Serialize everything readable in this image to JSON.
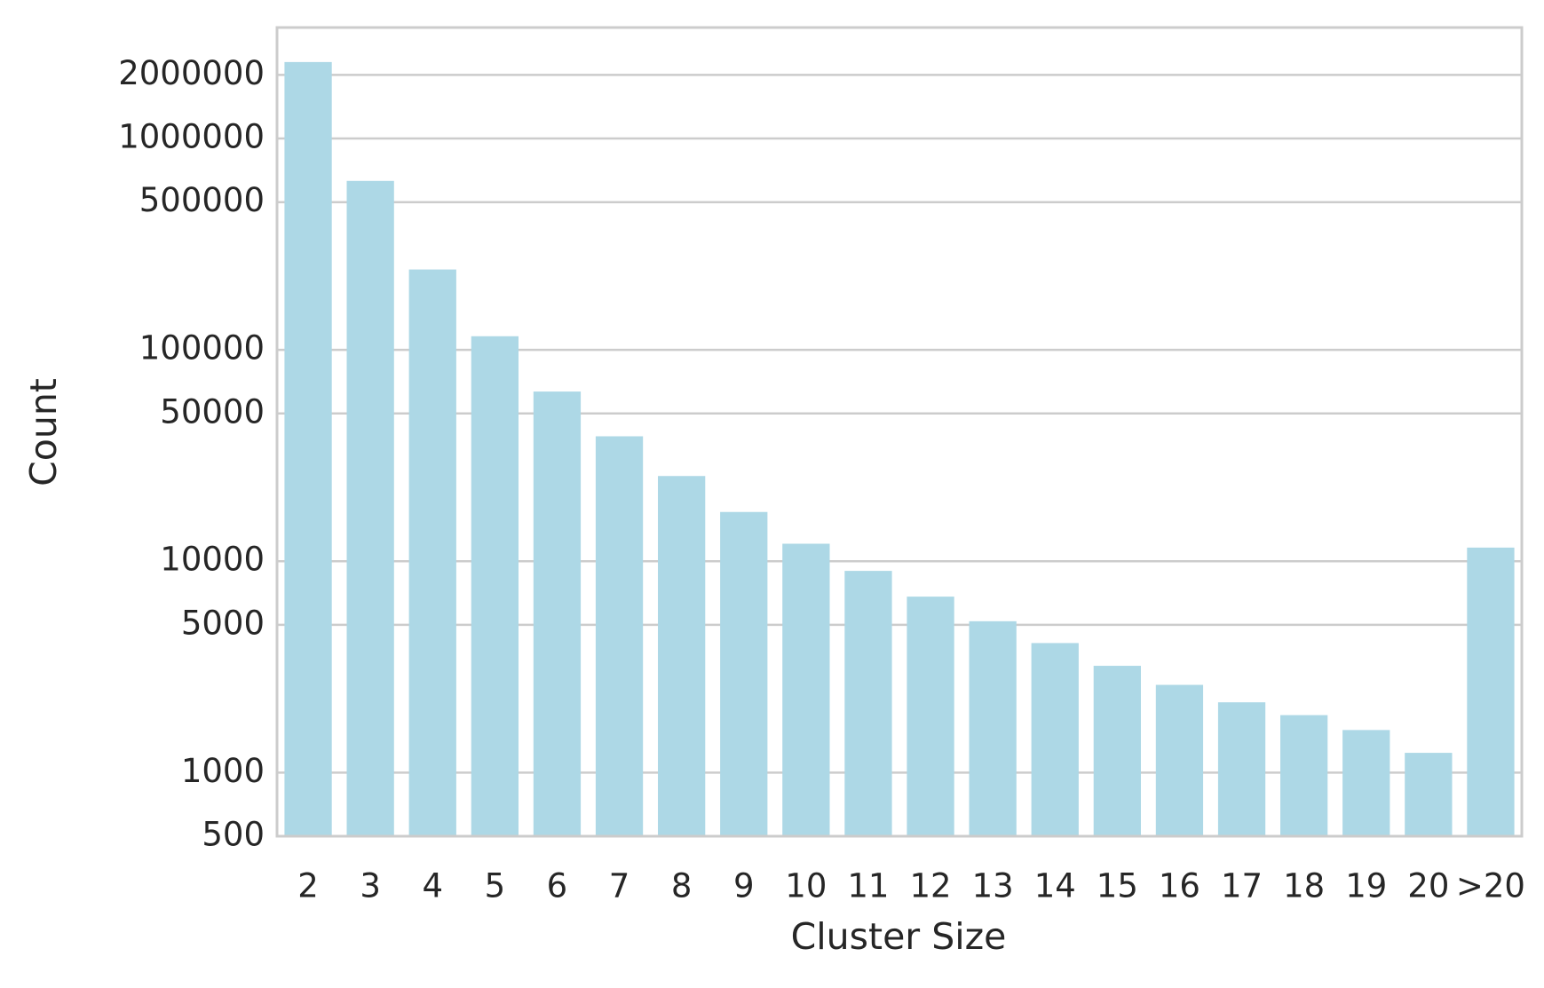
{
  "chart_data": {
    "type": "bar",
    "xlabel": "Cluster Size",
    "ylabel": "Count",
    "categories": [
      "2",
      "3",
      "4",
      "5",
      "6",
      "7",
      "8",
      "9",
      "10",
      "11",
      "12",
      "13",
      "14",
      "15",
      "16",
      "17",
      "18",
      "19",
      "20",
      ">20"
    ],
    "values": [
      2300000,
      630000,
      240000,
      116000,
      63500,
      39000,
      25300,
      17100,
      12100,
      9000,
      6800,
      5200,
      4100,
      3200,
      2600,
      2150,
      1870,
      1590,
      1240,
      11600
    ],
    "color": "#add8e6",
    "yscale": "log",
    "ylim": [
      500,
      3350000
    ],
    "yticks": [
      500,
      1000,
      5000,
      10000,
      50000,
      100000,
      500000,
      1000000,
      2000000
    ],
    "grid": true
  }
}
